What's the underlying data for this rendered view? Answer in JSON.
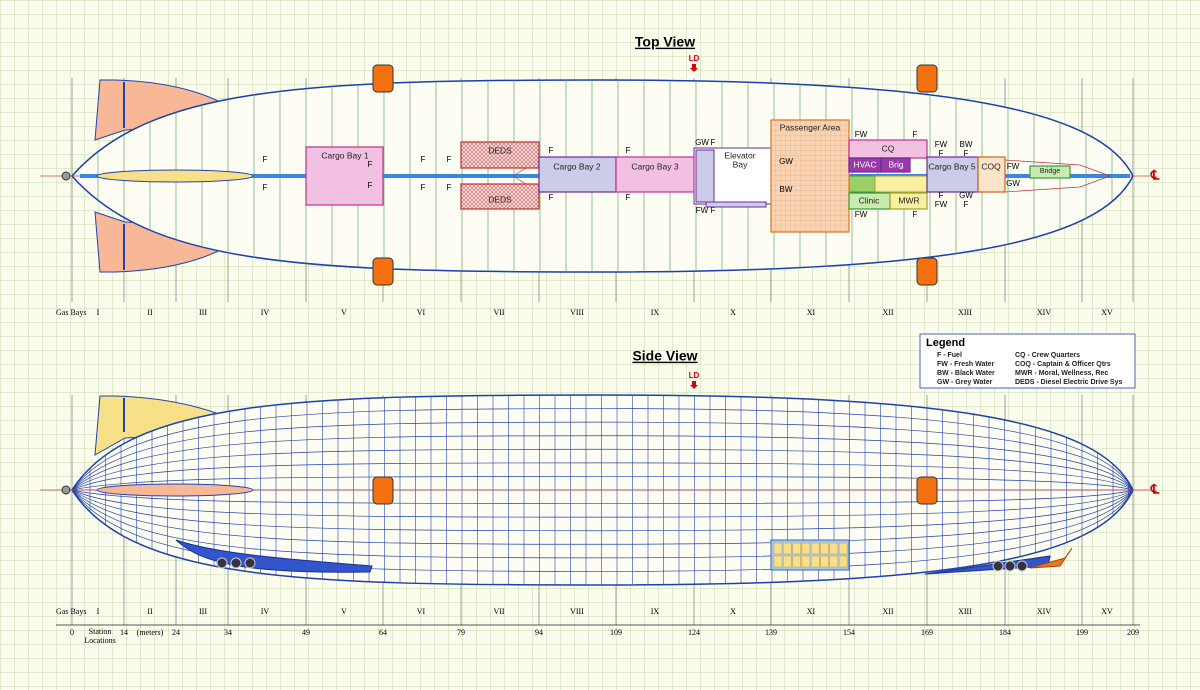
{
  "top_view": {
    "title": "Top View",
    "ld": "LD",
    "centerline": "℄",
    "compartments": [
      "Cargo Bay 1",
      "DEDS",
      "DEDS",
      "Cargo Bay 2",
      "Cargo Bay 3",
      "Elevator",
      "Bay",
      "Passenger Area",
      "CQ",
      "HVAC",
      "Brig",
      "Clinic",
      "MWR",
      "Cargo Bay 5",
      "COQ",
      "Bridge"
    ],
    "markers": [
      "F",
      "F",
      "F",
      "F",
      "F",
      "F",
      "F",
      "F",
      "F",
      "F",
      "F",
      "F",
      "GW",
      "F",
      "FW",
      "F",
      "GW",
      "BW",
      "FW",
      "F",
      "FW",
      "F",
      "FW",
      "BW",
      "F",
      "F",
      "F",
      "GW",
      "FW",
      "F",
      "FW",
      "GW"
    ]
  },
  "side_view": {
    "title": "Side View",
    "ld": "LD",
    "centerline": "℄"
  },
  "gas_bays": {
    "heading": "Gas Bays",
    "bays": [
      "I",
      "II",
      "III",
      "IV",
      "V",
      "VI",
      "VII",
      "VIII",
      "IX",
      "X",
      "XI",
      "XII",
      "XIII",
      "XIV",
      "XV"
    ]
  },
  "stations": {
    "label": [
      "Station",
      "Locations"
    ],
    "unit": "(meters)",
    "values": [
      0,
      14,
      24,
      34,
      49,
      64,
      79,
      94,
      109,
      124,
      139,
      154,
      169,
      184,
      199,
      209
    ]
  },
  "legend": {
    "title": "Legend",
    "entries": [
      "F - Fuel",
      "FW - Fresh Water",
      "BW - Black Water",
      "GW - Grey Water",
      "CQ - Crew Quarters",
      "COQ - Captain & Officer Qtrs",
      "MWR - Moral, Wellness, Rec",
      "DEDS - Diesel Electric Drive Sys"
    ]
  }
}
